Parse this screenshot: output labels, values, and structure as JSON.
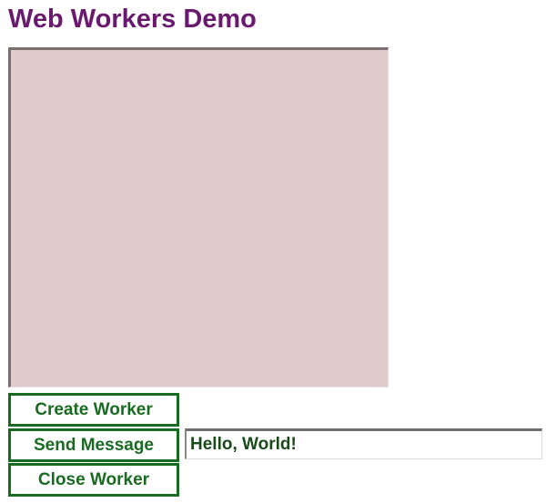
{
  "page": {
    "title": "Web Workers Demo"
  },
  "output": {
    "text": ""
  },
  "buttons": {
    "create_label": "Create Worker",
    "send_label": "Send Message",
    "close_label": "Close Worker"
  },
  "message_input": {
    "value": "Hello, World!"
  },
  "colors": {
    "title": "#6a1a6e",
    "output_background": "#dfcbcb",
    "button_border": "#1a6b22",
    "button_text": "#1a6b22"
  }
}
